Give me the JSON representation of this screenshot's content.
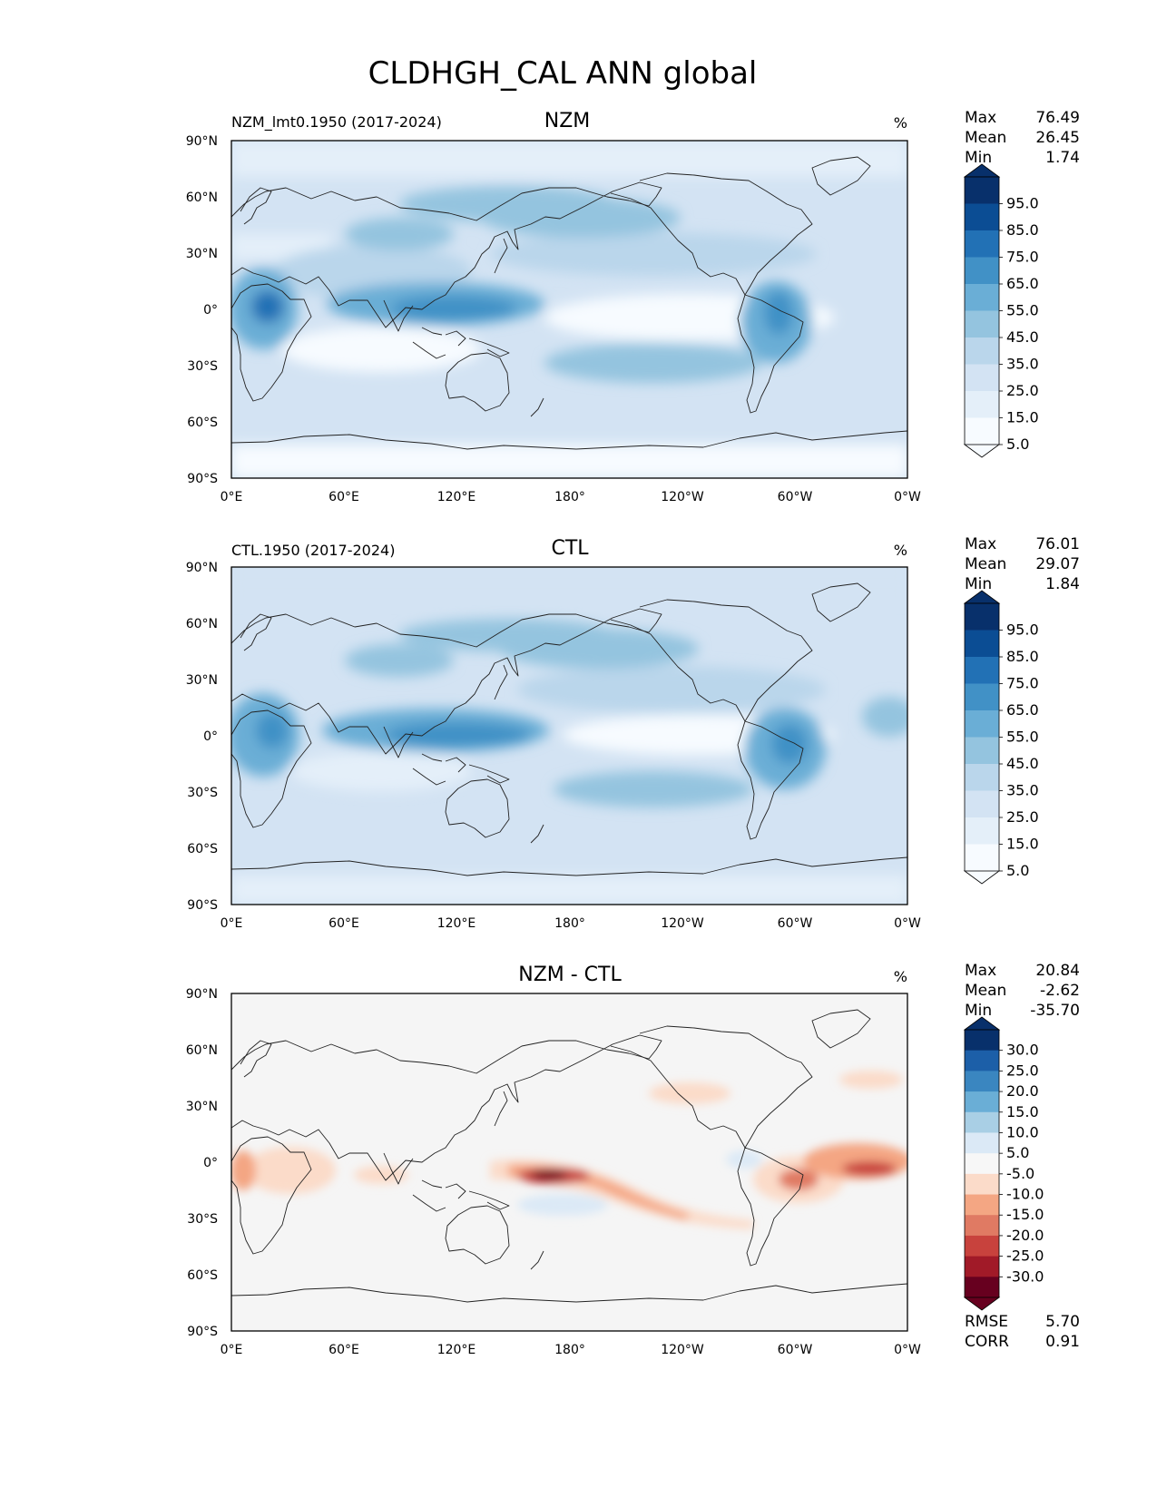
{
  "figure": {
    "title": "CLDHGH_CAL ANN global"
  },
  "chart_data": [
    {
      "type": "heatmap",
      "title": "NZM",
      "subtitle": "NZM_lmt0.1950 (2017-2024)",
      "units": "%",
      "stats": [
        {
          "label": "Max",
          "value": "76.49"
        },
        {
          "label": "Mean",
          "value": "26.45"
        },
        {
          "label": "Min",
          "value": "1.74"
        }
      ],
      "colorbar": {
        "levels": [
          "95.0",
          "85.0",
          "75.0",
          "65.0",
          "55.0",
          "45.0",
          "35.0",
          "25.0",
          "15.0",
          "5.0"
        ],
        "colors": [
          "#08306b",
          "#0b4d94",
          "#2271b5",
          "#4191c6",
          "#6aaed6",
          "#94c4df",
          "#bad6eb",
          "#d3e3f3",
          "#e4eff9",
          "#f7fbff"
        ],
        "extend": "both"
      },
      "xticks": [
        "0°E",
        "60°E",
        "120°E",
        "180°",
        "120°W",
        "60°W",
        "0°W"
      ],
      "yticks": [
        "90°N",
        "60°N",
        "30°N",
        "0°",
        "30°S",
        "60°S",
        "90°S"
      ],
      "xlim": [
        0,
        360
      ],
      "ylim": [
        -90,
        90
      ]
    },
    {
      "type": "heatmap",
      "title": "CTL",
      "subtitle": "CTL.1950 (2017-2024)",
      "units": "%",
      "stats": [
        {
          "label": "Max",
          "value": "76.01"
        },
        {
          "label": "Mean",
          "value": "29.07"
        },
        {
          "label": "Min",
          "value": "1.84"
        }
      ],
      "colorbar": {
        "levels": [
          "95.0",
          "85.0",
          "75.0",
          "65.0",
          "55.0",
          "45.0",
          "35.0",
          "25.0",
          "15.0",
          "5.0"
        ],
        "colors": [
          "#08306b",
          "#0b4d94",
          "#2271b5",
          "#4191c6",
          "#6aaed6",
          "#94c4df",
          "#bad6eb",
          "#d3e3f3",
          "#e4eff9",
          "#f7fbff"
        ],
        "extend": "both"
      },
      "xticks": [
        "0°E",
        "60°E",
        "120°E",
        "180°",
        "120°W",
        "60°W",
        "0°W"
      ],
      "yticks": [
        "90°N",
        "60°N",
        "30°N",
        "0°",
        "30°S",
        "60°S",
        "90°S"
      ],
      "xlim": [
        0,
        360
      ],
      "ylim": [
        -90,
        90
      ]
    },
    {
      "type": "heatmap",
      "title": "NZM - CTL",
      "subtitle": "",
      "units": "%",
      "stats": [
        {
          "label": "Max",
          "value": "20.84"
        },
        {
          "label": "Mean",
          "value": "-2.62"
        },
        {
          "label": "Min",
          "value": "-35.70"
        }
      ],
      "bottom_stats": [
        {
          "label": "RMSE",
          "value": "5.70"
        },
        {
          "label": "CORR",
          "value": "0.91"
        }
      ],
      "colorbar": {
        "levels": [
          "30.0",
          "25.0",
          "20.0",
          "15.0",
          "10.0",
          "5.0",
          "-5.0",
          "-10.0",
          "-15.0",
          "-20.0",
          "-25.0",
          "-30.0"
        ],
        "colors": [
          "#08306b",
          "#1c5fa8",
          "#3a86c0",
          "#6aaed6",
          "#a9cfe5",
          "#dbe9f6",
          "#f7f7f7",
          "#fbdbc9",
          "#f4a683",
          "#e07a63",
          "#c8423d",
          "#a11a28",
          "#67001f"
        ],
        "extend": "both"
      },
      "xticks": [
        "0°E",
        "60°E",
        "120°E",
        "180°",
        "120°W",
        "60°W",
        "0°W"
      ],
      "yticks": [
        "90°N",
        "60°N",
        "30°N",
        "0°",
        "30°S",
        "60°S",
        "90°S"
      ],
      "xlim": [
        0,
        360
      ],
      "ylim": [
        -90,
        90
      ]
    }
  ]
}
